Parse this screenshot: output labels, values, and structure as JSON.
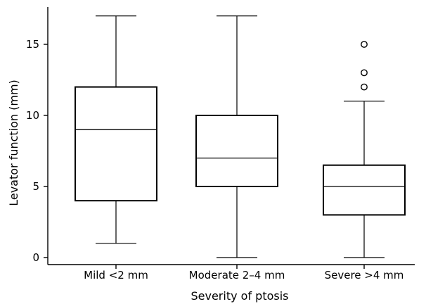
{
  "chart_data": {
    "type": "boxplot",
    "title": "",
    "xlabel": "Severity of ptosis",
    "ylabel": "Levator function (mm)",
    "ylim": [
      0,
      17
    ],
    "yticks": [
      0,
      5,
      10,
      15
    ],
    "grid": false,
    "categories": [
      "Mild <2 mm",
      "Moderate 2–4 mm",
      "Severe >4 mm"
    ],
    "boxes": [
      {
        "category": "Mild <2 mm",
        "min": 1,
        "q1": 4,
        "median": 9,
        "q3": 12,
        "max": 17,
        "outliers": []
      },
      {
        "category": "Moderate 2–4 mm",
        "min": 0,
        "q1": 5,
        "median": 7,
        "q3": 10,
        "max": 17,
        "outliers": []
      },
      {
        "category": "Severe >4 mm",
        "min": 0,
        "q1": 3,
        "median": 5,
        "q3": 6.5,
        "max": 11,
        "outliers": [
          12,
          13,
          15
        ]
      }
    ]
  }
}
